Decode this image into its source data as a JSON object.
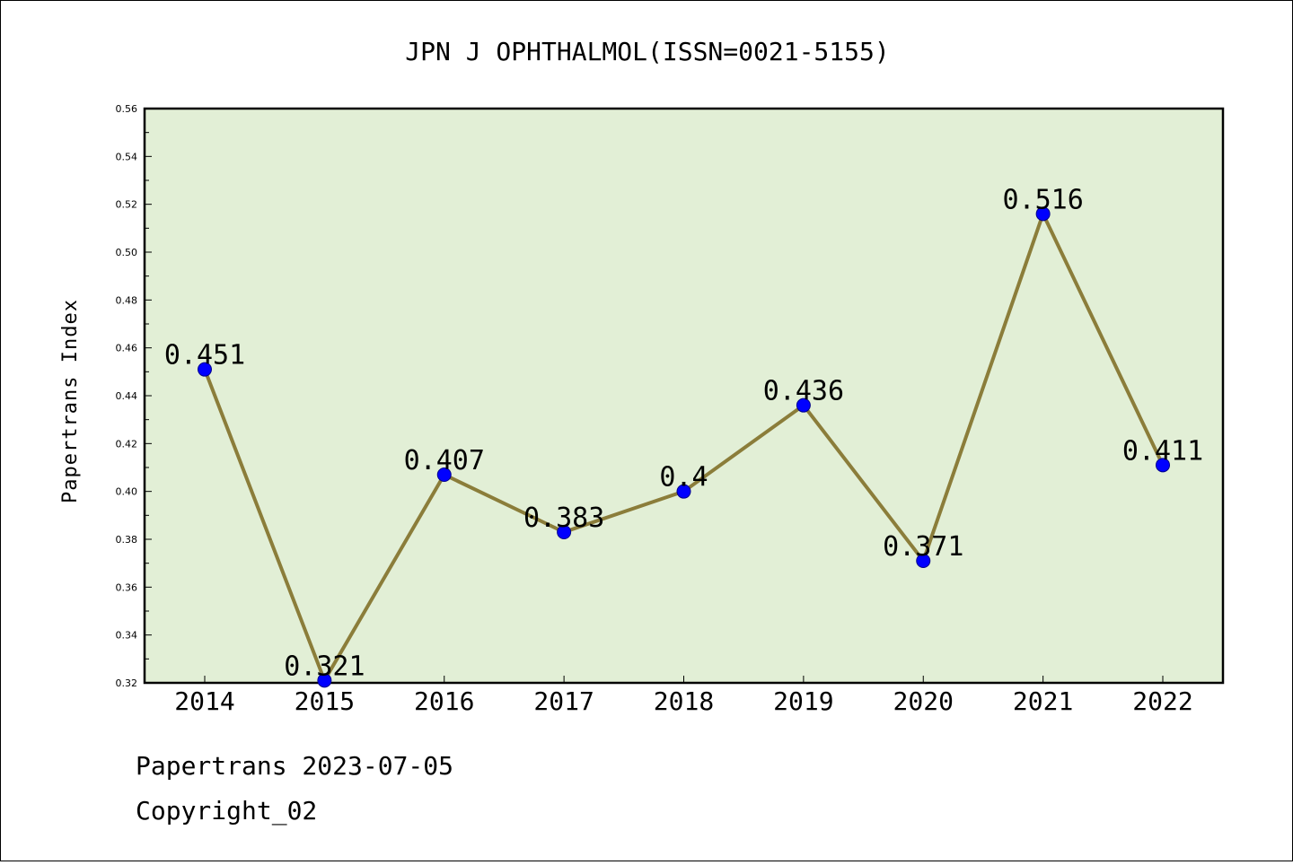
{
  "chart_data": {
    "type": "line",
    "title": "JPN J OPHTHALMOL(ISSN=0021-5155)",
    "xlabel": "",
    "ylabel": "Papertrans Index",
    "categories": [
      "2014",
      "2015",
      "2016",
      "2017",
      "2018",
      "2019",
      "2020",
      "2021",
      "2022"
    ],
    "series": [
      {
        "values": [
          0.451,
          0.321,
          0.407,
          0.383,
          0.4,
          0.436,
          0.371,
          0.516,
          0.411
        ],
        "labels": [
          "0.451",
          "0.321",
          "0.407",
          "0.383",
          "0.4",
          "0.436",
          "0.371",
          "0.516",
          "0.411"
        ]
      }
    ],
    "ylim": [
      0.32,
      0.56
    ],
    "yticks": [
      "0.32",
      "0.34",
      "0.36",
      "0.38",
      "0.40",
      "0.42",
      "0.44",
      "0.46",
      "0.48",
      "0.50",
      "0.52",
      "0.54",
      "0.56"
    ],
    "grid": false,
    "colors": {
      "plot_bg": "#e2efd6",
      "line": "#8b7d3a",
      "marker": "#0000ff"
    }
  },
  "footer": {
    "line1": "Papertrans 2023-07-05",
    "line2": "Copyright_02"
  }
}
